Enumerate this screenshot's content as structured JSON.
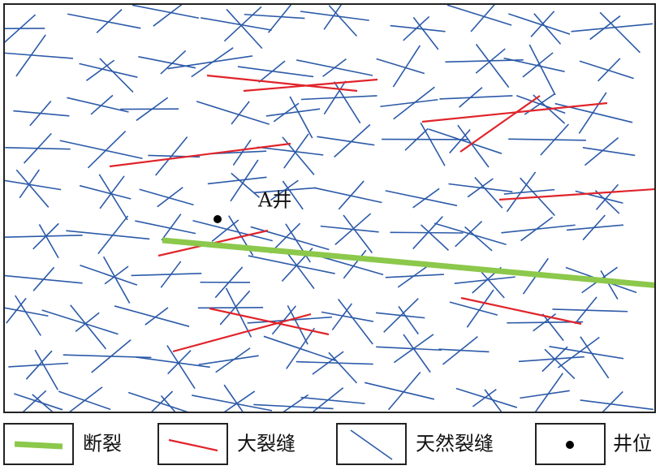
{
  "well_label": "A井",
  "legend": [
    {
      "label": "断裂"
    },
    {
      "label": "大裂缝"
    },
    {
      "label": "天然裂缝"
    },
    {
      "label": "井位"
    }
  ]
}
